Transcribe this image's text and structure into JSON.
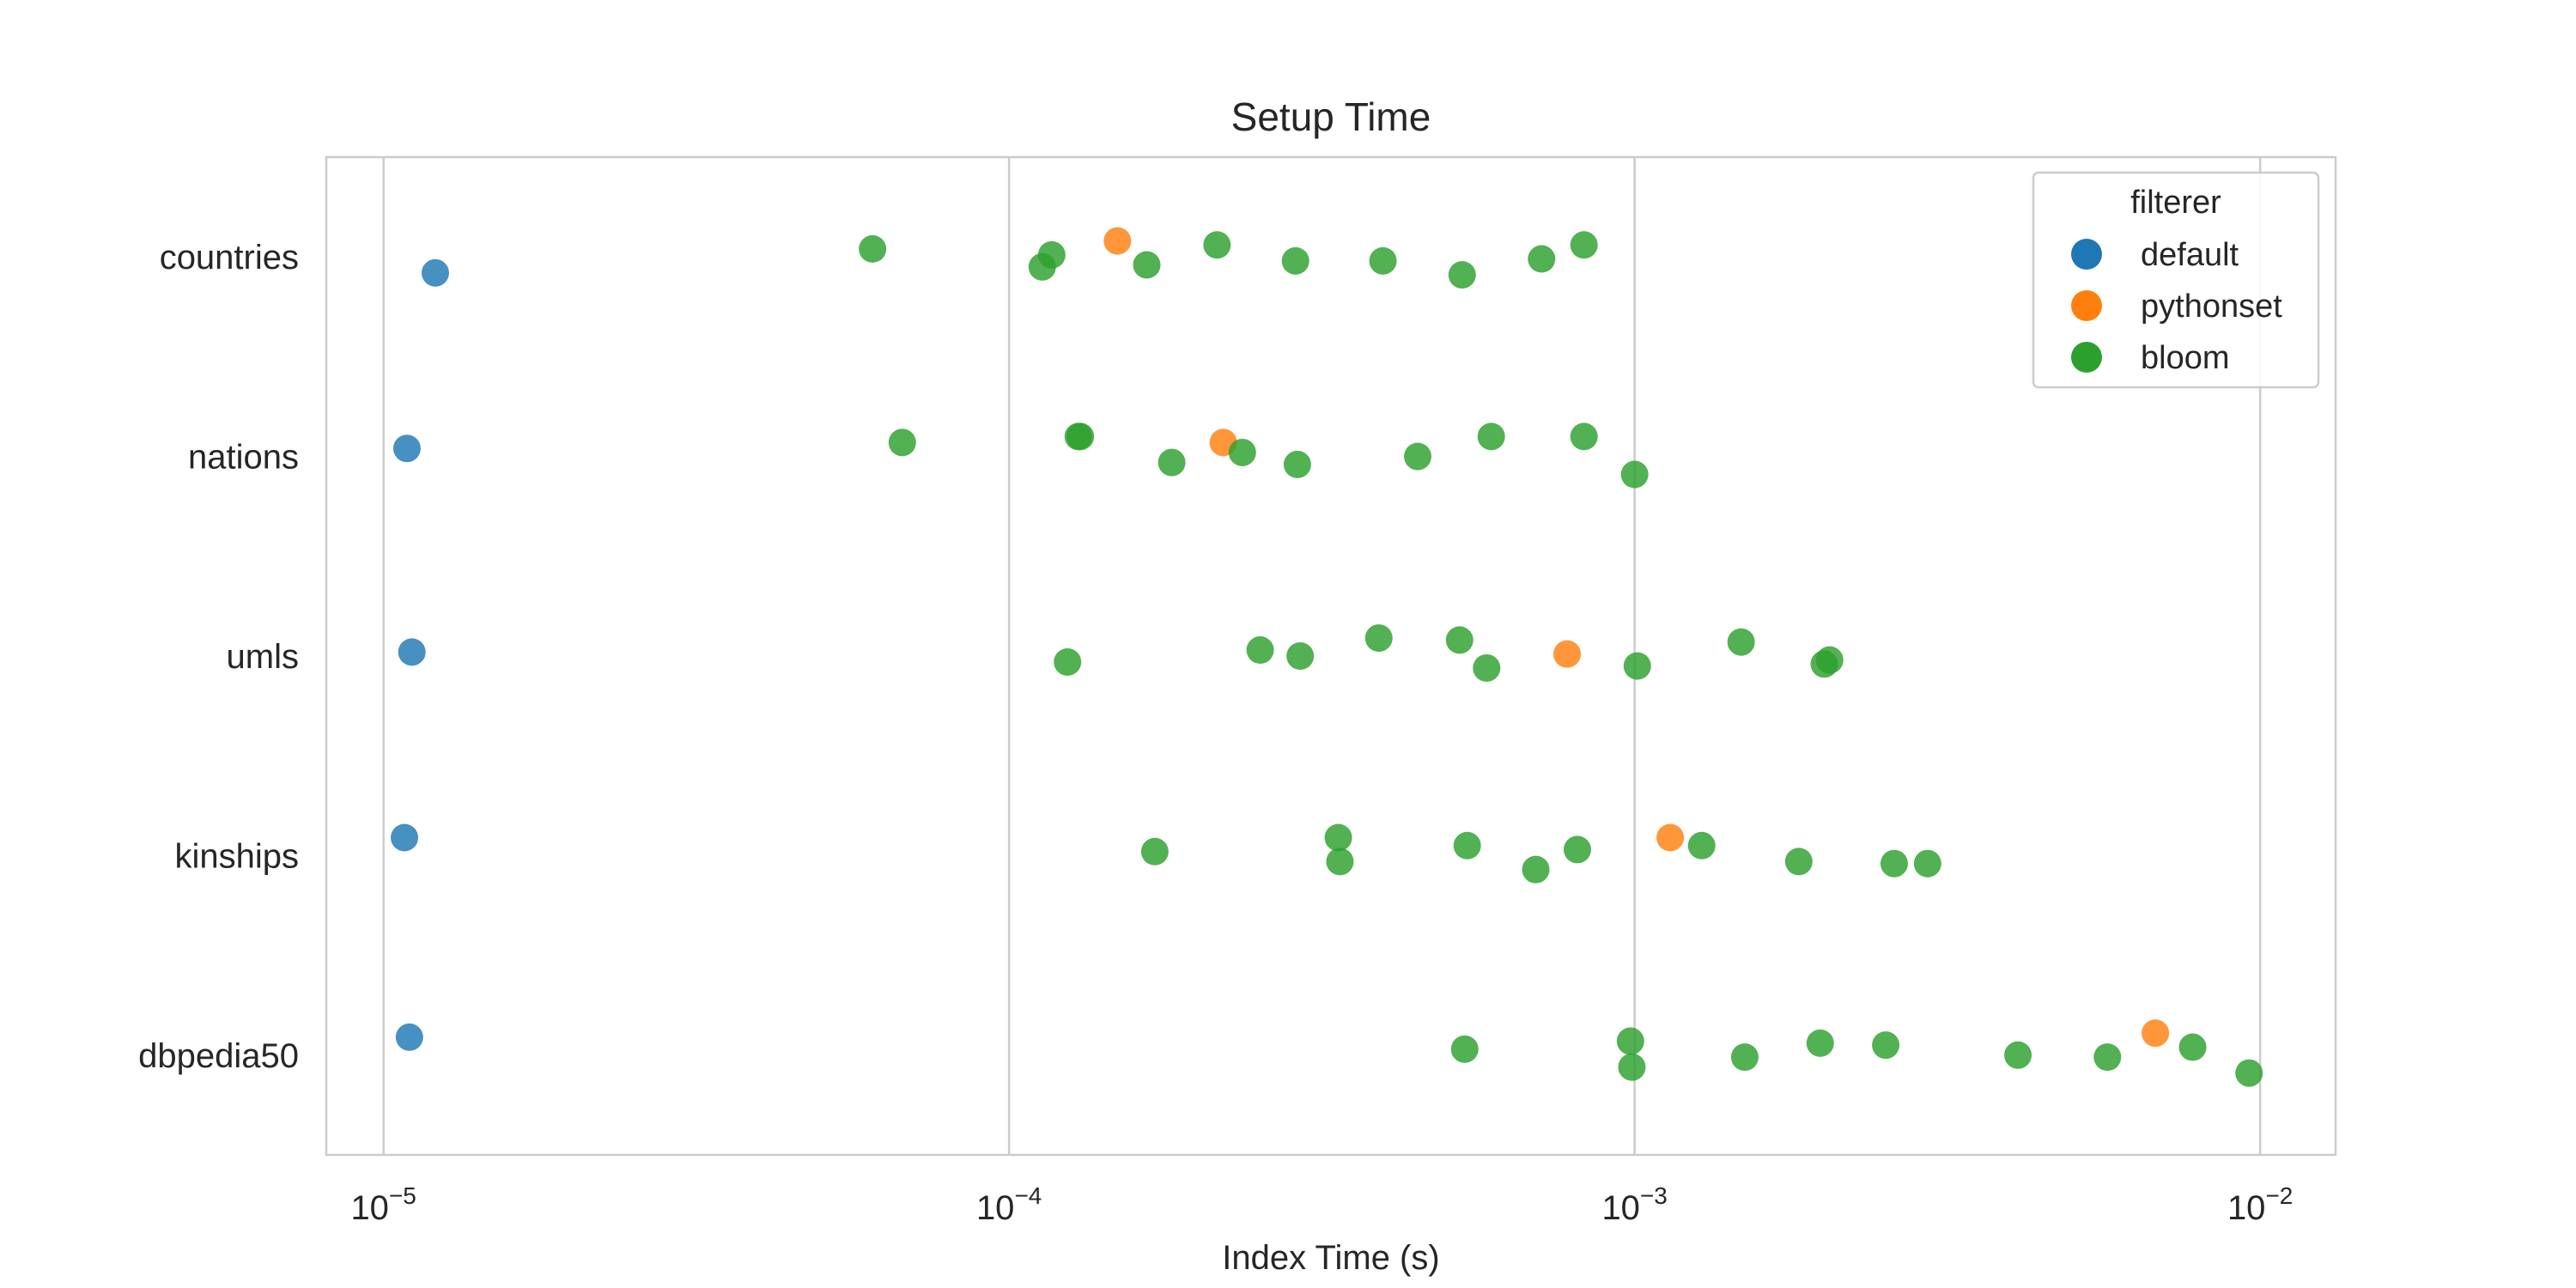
{
  "chart_data": {
    "type": "scatter",
    "title": "Setup Time",
    "xlabel": "Index Time (s)",
    "ylabel": "",
    "xscale": "log",
    "xlim": [
      8.1e-06,
      0.0132
    ],
    "grid": "vertical",
    "x_ticks": [
      {
        "value": 1e-05,
        "base": "10",
        "exp": "−5"
      },
      {
        "value": 0.0001,
        "base": "10",
        "exp": "−4"
      },
      {
        "value": 0.001,
        "base": "10",
        "exp": "−3"
      },
      {
        "value": 0.01,
        "base": "10",
        "exp": "−2"
      }
    ],
    "categories": [
      "countries",
      "nations",
      "umls",
      "kinships",
      "dbpedia50"
    ],
    "legend": {
      "title": "filterer",
      "placement": "top-right"
    },
    "series": [
      {
        "name": "default",
        "color": "#1f77b4",
        "points": [
          {
            "category": "countries",
            "x": 1.21e-05,
            "jitter": 0.08
          },
          {
            "category": "nations",
            "x": 1.09e-05,
            "jitter": -0.04
          },
          {
            "category": "umls",
            "x": 1.11e-05,
            "jitter": -0.02
          },
          {
            "category": "kinships",
            "x": 1.08e-05,
            "jitter": -0.09
          },
          {
            "category": "dbpedia50",
            "x": 1.1e-05,
            "jitter": -0.09
          }
        ]
      },
      {
        "name": "pythonset",
        "color": "#ff7f0e",
        "points": [
          {
            "category": "countries",
            "x": 0.000149,
            "jitter": -0.08
          },
          {
            "category": "nations",
            "x": 0.00022,
            "jitter": -0.07
          },
          {
            "category": "umls",
            "x": 0.00078,
            "jitter": -0.01
          },
          {
            "category": "kinships",
            "x": 0.00114,
            "jitter": -0.09
          },
          {
            "category": "dbpedia50",
            "x": 0.0068,
            "jitter": -0.11
          }
        ]
      },
      {
        "name": "bloom",
        "color": "#2ca02c",
        "points": [
          {
            "category": "countries",
            "x": 6.05e-05,
            "jitter": -0.04
          },
          {
            "category": "countries",
            "x": 0.000113,
            "jitter": 0.05
          },
          {
            "category": "countries",
            "x": 0.000117,
            "jitter": -0.01
          },
          {
            "category": "countries",
            "x": 0.000166,
            "jitter": 0.04
          },
          {
            "category": "countries",
            "x": 0.000215,
            "jitter": -0.06
          },
          {
            "category": "countries",
            "x": 0.000287,
            "jitter": 0.02
          },
          {
            "category": "countries",
            "x": 0.000396,
            "jitter": 0.02
          },
          {
            "category": "countries",
            "x": 0.00053,
            "jitter": 0.09
          },
          {
            "category": "countries",
            "x": 0.00071,
            "jitter": 0.01
          },
          {
            "category": "countries",
            "x": 0.00083,
            "jitter": -0.06
          },
          {
            "category": "nations",
            "x": 6.75e-05,
            "jitter": -0.07
          },
          {
            "category": "nations",
            "x": 0.000129,
            "jitter": -0.1
          },
          {
            "category": "nations",
            "x": 0.00013,
            "jitter": -0.1
          },
          {
            "category": "nations",
            "x": 0.000182,
            "jitter": 0.03
          },
          {
            "category": "nations",
            "x": 0.000236,
            "jitter": -0.02
          },
          {
            "category": "nations",
            "x": 0.000289,
            "jitter": 0.04
          },
          {
            "category": "nations",
            "x": 0.00045,
            "jitter": 0.0
          },
          {
            "category": "nations",
            "x": 0.00059,
            "jitter": -0.1
          },
          {
            "category": "nations",
            "x": 0.00083,
            "jitter": -0.1
          },
          {
            "category": "nations",
            "x": 0.001,
            "jitter": 0.09
          },
          {
            "category": "umls",
            "x": 0.000124,
            "jitter": 0.03
          },
          {
            "category": "umls",
            "x": 0.000252,
            "jitter": -0.03
          },
          {
            "category": "umls",
            "x": 0.000292,
            "jitter": 0.0
          },
          {
            "category": "umls",
            "x": 0.00039,
            "jitter": -0.09
          },
          {
            "category": "umls",
            "x": 0.000525,
            "jitter": -0.08
          },
          {
            "category": "umls",
            "x": 0.00058,
            "jitter": 0.06
          },
          {
            "category": "umls",
            "x": 0.00101,
            "jitter": 0.05
          },
          {
            "category": "umls",
            "x": 0.00148,
            "jitter": -0.07
          },
          {
            "category": "umls",
            "x": 0.00201,
            "jitter": 0.04
          },
          {
            "category": "umls",
            "x": 0.00205,
            "jitter": 0.02
          },
          {
            "category": "kinships",
            "x": 0.000171,
            "jitter": -0.02
          },
          {
            "category": "kinships",
            "x": 0.000336,
            "jitter": -0.09
          },
          {
            "category": "kinships",
            "x": 0.000338,
            "jitter": 0.03
          },
          {
            "category": "kinships",
            "x": 0.00054,
            "jitter": -0.05
          },
          {
            "category": "kinships",
            "x": 0.000695,
            "jitter": 0.07
          },
          {
            "category": "kinships",
            "x": 0.00081,
            "jitter": -0.03
          },
          {
            "category": "kinships",
            "x": 0.00128,
            "jitter": -0.05
          },
          {
            "category": "kinships",
            "x": 0.00183,
            "jitter": 0.03
          },
          {
            "category": "kinships",
            "x": 0.0026,
            "jitter": 0.04
          },
          {
            "category": "kinships",
            "x": 0.00294,
            "jitter": 0.04
          },
          {
            "category": "dbpedia50",
            "x": 0.000535,
            "jitter": -0.03
          },
          {
            "category": "dbpedia50",
            "x": 0.000985,
            "jitter": -0.07
          },
          {
            "category": "dbpedia50",
            "x": 0.00099,
            "jitter": 0.06
          },
          {
            "category": "dbpedia50",
            "x": 0.0015,
            "jitter": 0.01
          },
          {
            "category": "dbpedia50",
            "x": 0.00198,
            "jitter": -0.06
          },
          {
            "category": "dbpedia50",
            "x": 0.00252,
            "jitter": -0.05
          },
          {
            "category": "dbpedia50",
            "x": 0.0041,
            "jitter": 0.0
          },
          {
            "category": "dbpedia50",
            "x": 0.0057,
            "jitter": 0.01
          },
          {
            "category": "dbpedia50",
            "x": 0.0078,
            "jitter": -0.04
          },
          {
            "category": "dbpedia50",
            "x": 0.0096,
            "jitter": 0.09
          }
        ]
      }
    ]
  }
}
